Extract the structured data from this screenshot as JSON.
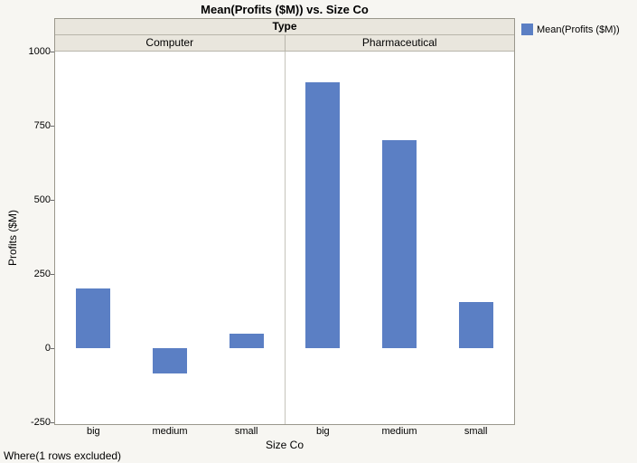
{
  "footnote": "Where(1 rows excluded)",
  "chart_data": {
    "type": "bar",
    "title": "Mean(Profits ($M)) vs. Size Co",
    "ylabel": "Profits ($M)",
    "xlabel": "Size Co",
    "ylim": [
      -250,
      1000
    ],
    "yticks": [
      -250,
      0,
      250,
      500,
      750,
      1000
    ],
    "panel_header": "Type",
    "categories": [
      "big",
      "medium",
      "small"
    ],
    "series_name": "Mean(Profits ($M))",
    "bar_color": "#5b7fc4",
    "grid": false,
    "legend_position": "top-right",
    "groups": [
      {
        "label": "Computer",
        "values": [
          200,
          -85,
          50
        ]
      },
      {
        "label": "Pharmaceutical",
        "values": [
          895,
          700,
          155
        ]
      }
    ]
  }
}
